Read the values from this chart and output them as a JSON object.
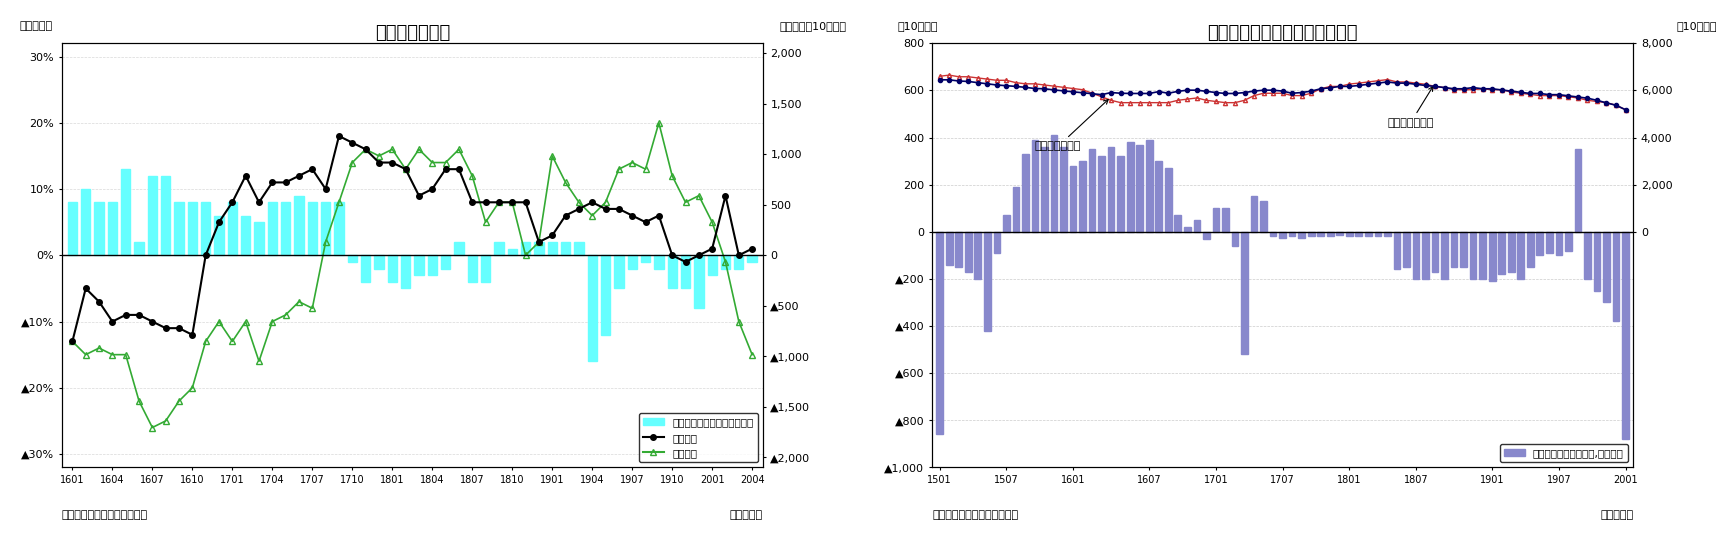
{
  "chart1": {
    "title": "貿易収支の推移",
    "ylabel_left": "（前年比）",
    "ylabel_right": "（前年差、10億円）",
    "xlabel": "（年・月）",
    "source": "（資料）財務省「貿易統計」",
    "xticks": [
      "1601",
      "1604",
      "1607",
      "1610",
      "1701",
      "1704",
      "1707",
      "1710",
      "1801",
      "1804",
      "1807",
      "1810",
      "1901",
      "1904",
      "1907",
      "1910",
      "2001",
      "2004"
    ],
    "ylim_left": [
      -0.32,
      0.32
    ],
    "ylim_right": [
      -2100,
      2100
    ],
    "yticks_left": [
      0.3,
      0.2,
      0.1,
      0.0,
      -0.1,
      -0.2,
      -0.3
    ],
    "yticks_right": [
      2000,
      1500,
      1000,
      500,
      0,
      -500,
      -1000,
      -1500,
      -2000
    ],
    "legend": [
      "貿易収支・前年差（右目盛）",
      "輸出金額",
      "輸入金額"
    ],
    "bar_color": "#66FFFF",
    "line_export_color": "#000000",
    "line_import_color": "#33AA33",
    "bar_data_y": [
      8,
      10,
      8,
      8,
      13,
      2,
      12,
      12,
      8,
      8,
      8,
      6,
      8,
      6,
      5,
      8,
      8,
      9,
      8,
      8,
      8,
      -1,
      -4,
      -2,
      -4,
      -5,
      -3,
      -3,
      -2,
      2,
      -4,
      -4,
      2,
      1,
      2,
      2,
      2,
      2,
      2,
      -16,
      -12,
      -5,
      -2,
      -1,
      -2,
      -5,
      -5,
      -8,
      -3,
      -2,
      -2,
      -1
    ],
    "export_data": [
      -13,
      -5,
      -7,
      -10,
      -9,
      -9,
      -10,
      -11,
      -11,
      -12,
      0,
      5,
      8,
      12,
      8,
      11,
      11,
      12,
      13,
      10,
      18,
      17,
      16,
      14,
      14,
      13,
      9,
      10,
      13,
      13,
      8,
      8,
      8,
      8,
      8,
      2,
      3,
      6,
      7,
      8,
      7,
      7,
      6,
      5,
      6,
      0,
      -1,
      0,
      1,
      9,
      0,
      1
    ],
    "import_data": [
      -13,
      -15,
      -14,
      -15,
      -15,
      -22,
      -26,
      -25,
      -22,
      -20,
      -13,
      -10,
      -13,
      -10,
      -16,
      -10,
      -9,
      -7,
      -8,
      2,
      8,
      14,
      16,
      15,
      16,
      13,
      16,
      14,
      14,
      16,
      12,
      5,
      8,
      8,
      0,
      2,
      15,
      11,
      8,
      6,
      8,
      13,
      14,
      13,
      20,
      12,
      8,
      9,
      5,
      -1,
      -10,
      -15
    ]
  },
  "chart2": {
    "title": "貿易収支（季節調整値）の推移",
    "ylabel_left": "（10億円）",
    "ylabel_right": "（10億円）",
    "xlabel": "（年・月）",
    "source": "（資料）財務省「貿易統計」",
    "xticks": [
      "1501",
      "1507",
      "1601",
      "1607",
      "1701",
      "1707",
      "1801",
      "1807",
      "1901",
      "1907",
      "2001"
    ],
    "ylim_left": [
      -1000,
      800
    ],
    "ylim_right": [
      -1000,
      800
    ],
    "yticks_left": [
      800,
      600,
      400,
      200,
      0,
      -200,
      -400,
      -600,
      -800,
      -1000
    ],
    "yticks_left_labels": [
      "800",
      "600",
      "400",
      "200",
      "0",
      "▲200",
      "▲400",
      "▲600",
      "▲800",
      "▲1,000"
    ],
    "yticks_right": [
      800,
      600,
      400,
      200,
      0
    ],
    "yticks_right_labels": [
      "8,000",
      "6,000",
      "4,000",
      "2,000",
      "0"
    ],
    "annotation_import": "輸入（右目盛）",
    "annotation_export": "輸出（右目盛）",
    "legend": [
      "貿易収支（季節調整値,左目盛）"
    ],
    "bar_color": "#8888CC",
    "export_color": "#000066",
    "import_color": "#CC3333",
    "bar_y": [
      -860,
      -140,
      -150,
      -170,
      -200,
      -420,
      -90,
      70,
      190,
      330,
      390,
      360,
      410,
      360,
      280,
      300,
      350,
      320,
      360,
      320,
      380,
      370,
      390,
      300,
      270,
      70,
      20,
      50,
      -30,
      100,
      100,
      -60,
      -520,
      150,
      130,
      -20,
      -25,
      -20,
      -25,
      -20,
      -20,
      -20,
      -15,
      -18,
      -20,
      -19,
      -20,
      -20,
      -160,
      -150,
      -200,
      -200,
      -170,
      -200,
      -150,
      -150,
      -200,
      -200,
      -210,
      -180,
      -170,
      -200,
      -150,
      -100,
      -90,
      -100,
      -80,
      350,
      -200,
      -250,
      -300,
      -380,
      -880
    ],
    "export_y_left": [
      645,
      645,
      640,
      638,
      633,
      628,
      623,
      620,
      617,
      613,
      608,
      607,
      602,
      598,
      594,
      590,
      586,
      582,
      591,
      588,
      587,
      587,
      587,
      595,
      588,
      596,
      601,
      601,
      596,
      591,
      587,
      587,
      591,
      597,
      601,
      601,
      597,
      588,
      591,
      597,
      607,
      611,
      617,
      617,
      621,
      626,
      631,
      636,
      631,
      631,
      626,
      621,
      617,
      612,
      607,
      607,
      612,
      607,
      607,
      602,
      597,
      592,
      587,
      587,
      582,
      582,
      577,
      572,
      567,
      558,
      547,
      537,
      518
    ],
    "import_y_left": [
      660,
      665,
      658,
      658,
      653,
      648,
      643,
      643,
      633,
      628,
      628,
      623,
      618,
      613,
      608,
      603,
      588,
      573,
      558,
      548,
      548,
      548,
      548,
      548,
      548,
      558,
      563,
      568,
      558,
      553,
      548,
      548,
      558,
      578,
      588,
      588,
      588,
      578,
      578,
      588,
      607,
      617,
      617,
      627,
      631,
      636,
      641,
      646,
      636,
      636,
      631,
      626,
      617,
      612,
      603,
      603,
      603,
      607,
      603,
      603,
      593,
      588,
      583,
      578,
      578,
      578,
      573,
      568,
      558,
      553,
      548,
      537,
      518
    ]
  }
}
